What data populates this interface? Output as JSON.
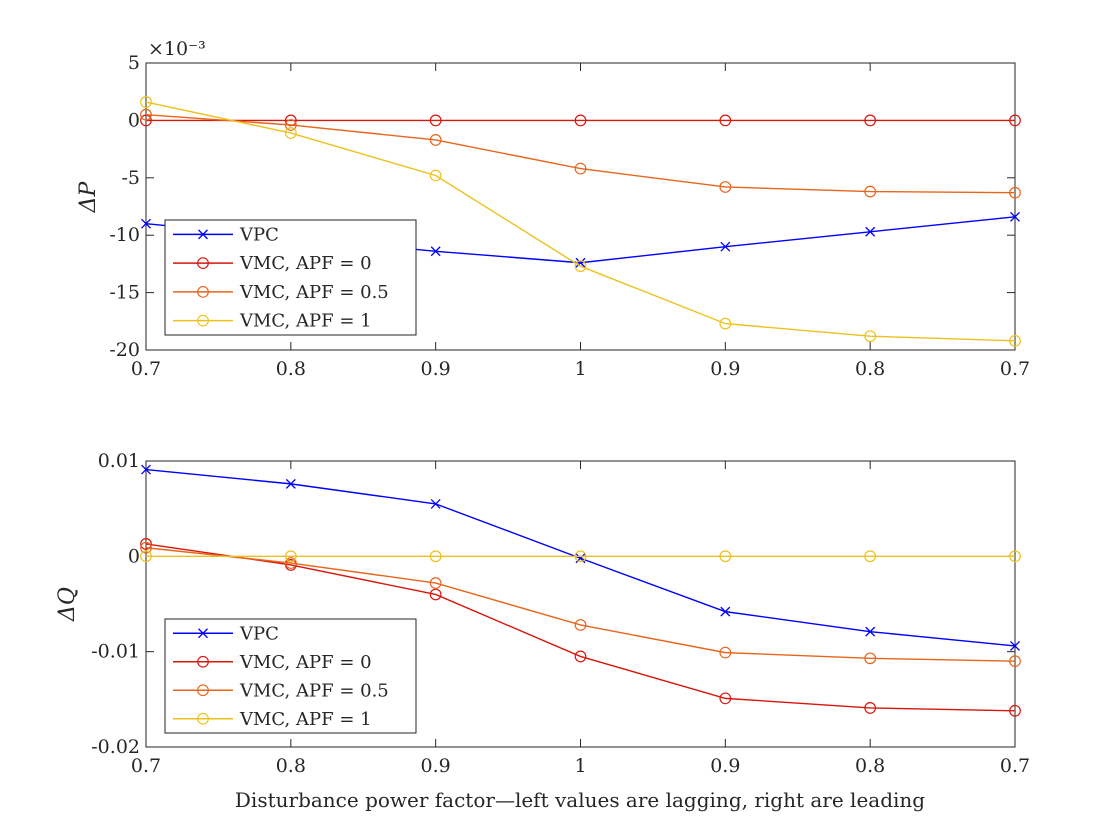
{
  "chart_data": [
    {
      "type": "line",
      "ylabel": "ΔP",
      "y_exponent": "×10⁻³",
      "categories": [
        "0.7",
        "0.8",
        "0.9",
        "1",
        "0.9",
        "0.8",
        "0.7"
      ],
      "yticks": [
        5,
        0,
        -5,
        -10,
        -15,
        -20
      ],
      "ylim": [
        -20,
        5
      ],
      "grid": false,
      "legend_position": "bottom-left",
      "series": [
        {
          "name": "VPC",
          "color": "#0000ff",
          "marker": "x",
          "values": [
            -9.0,
            -10.2,
            -11.4,
            -12.4,
            -11.0,
            -9.7,
            -8.4
          ]
        },
        {
          "name": "VMC, APF = 0",
          "color": "#d9160c",
          "marker": "o",
          "values": [
            0.0,
            0.0,
            0.0,
            0.0,
            0.0,
            0.0,
            0.0
          ]
        },
        {
          "name": "VMC, APF = 0.5",
          "color": "#e8651b",
          "marker": "o",
          "values": [
            0.5,
            -0.4,
            -1.7,
            -4.2,
            -5.8,
            -6.2,
            -6.3
          ]
        },
        {
          "name": "VMC, APF = 1",
          "color": "#edc11d",
          "marker": "o",
          "values": [
            1.6,
            -1.1,
            -4.8,
            -12.7,
            -17.7,
            -18.8,
            -19.2
          ]
        }
      ]
    },
    {
      "type": "line",
      "ylabel": "ΔQ",
      "xlabel": "Disturbance power factor—left values are lagging, right are leading",
      "categories": [
        "0.7",
        "0.8",
        "0.9",
        "1",
        "0.9",
        "0.8",
        "0.7"
      ],
      "ytick_labels": [
        "0.01",
        "0",
        "-0.01",
        "-0.02"
      ],
      "yticks": [
        0.01,
        0,
        -0.01,
        -0.02
      ],
      "ylim": [
        -0.02,
        0.01
      ],
      "grid": false,
      "legend_position": "bottom-left",
      "series": [
        {
          "name": "VPC",
          "color": "#0000ff",
          "marker": "x",
          "values": [
            0.0091,
            0.0076,
            0.0055,
            -0.0002,
            -0.0058,
            -0.0079,
            -0.0094
          ]
        },
        {
          "name": "VMC, APF = 0",
          "color": "#d9160c",
          "marker": "o",
          "values": [
            0.0013,
            -0.0009,
            -0.004,
            -0.0105,
            -0.0149,
            -0.0159,
            -0.0162
          ]
        },
        {
          "name": "VMC, APF = 0.5",
          "color": "#e8651b",
          "marker": "o",
          "values": [
            0.0009,
            -0.0007,
            -0.0028,
            -0.0072,
            -0.0101,
            -0.0107,
            -0.011
          ]
        },
        {
          "name": "VMC, APF = 1",
          "color": "#edc11d",
          "marker": "o",
          "values": [
            0.0,
            0.0,
            0.0,
            0.0,
            0.0,
            0.0,
            0.0
          ]
        }
      ]
    }
  ]
}
